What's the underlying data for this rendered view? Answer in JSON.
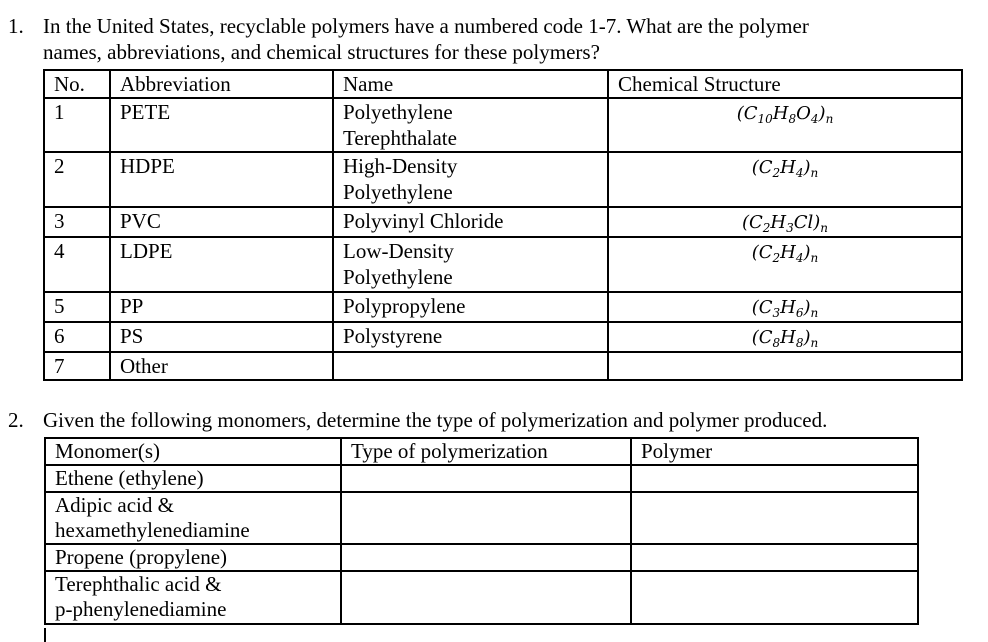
{
  "question1": {
    "number": "1.",
    "line1": "In the United States, recyclable polymers have a numbered code 1-7. What are the polymer",
    "line2": "names, abbreviations, and chemical structures for these polymers?",
    "table": {
      "headers": [
        "No.",
        "Abbreviation",
        "Name",
        "Chemical Structure"
      ],
      "rows": [
        {
          "no": "1",
          "abbr": "PETE",
          "name": [
            "Polyethylene",
            "Terephthalate"
          ],
          "formula": "(C10H8O4)n"
        },
        {
          "no": "2",
          "abbr": "HDPE",
          "name": [
            "High-Density",
            "Polyethylene"
          ],
          "formula": "(C2H4)n"
        },
        {
          "no": "3",
          "abbr": "PVC",
          "name": [
            "Polyvinyl Chloride"
          ],
          "formula": "(C2H3Cl)n"
        },
        {
          "no": "4",
          "abbr": "LDPE",
          "name": [
            "Low-Density",
            "Polyethylene"
          ],
          "formula": "(C2H4)n"
        },
        {
          "no": "5",
          "abbr": "PP",
          "name": [
            "Polypropylene"
          ],
          "formula": "(C3H6)n"
        },
        {
          "no": "6",
          "abbr": "PS",
          "name": [
            "Polystyrene"
          ],
          "formula": "(C8H8)n"
        },
        {
          "no": "7",
          "abbr": "Other",
          "name": [],
          "formula": ""
        }
      ]
    }
  },
  "question2": {
    "number": "2.",
    "line1": "Given the following monomers, determine the type of polymerization and polymer produced.",
    "table": {
      "headers": [
        "Monomer(s)",
        "Type of polymerization",
        "Polymer"
      ],
      "rows": [
        {
          "monomer": [
            "Ethene (ethylene)"
          ],
          "type": "",
          "polymer": ""
        },
        {
          "monomer": [
            "Adipic acid &",
            "hexamethylenediamine"
          ],
          "type": "",
          "polymer": ""
        },
        {
          "monomer": [
            "Propene (propylene)"
          ],
          "type": "",
          "polymer": ""
        },
        {
          "monomer": [
            "Terephthalic acid &",
            "p-phenylenediamine"
          ],
          "type": "",
          "polymer": ""
        }
      ]
    }
  }
}
